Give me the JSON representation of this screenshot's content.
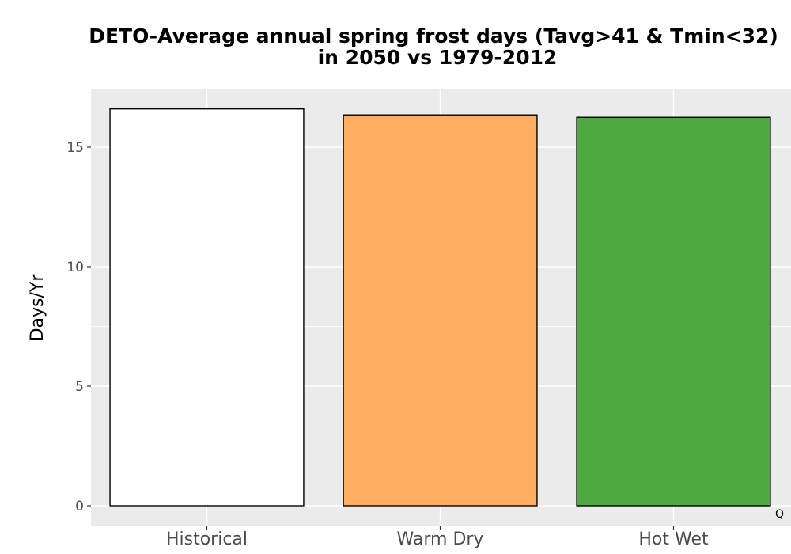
{
  "chart_data": {
    "type": "bar",
    "title_lines": [
      "DETO-Average annual spring frost days (Tavg>41 & Tmin<32)",
      "in 2050 vs 1979-2012"
    ],
    "xlabel": "",
    "ylabel": "Days/Yr",
    "categories": [
      "Historical",
      "Warm Dry",
      "Hot Wet"
    ],
    "values": [
      16.6,
      16.35,
      16.25
    ],
    "bar_colors": [
      "#ffffff",
      "#fdae61",
      "#4daa3f"
    ],
    "bar_outline_color": "#000000",
    "ylim": [
      0,
      17
    ],
    "yticks": [
      0,
      5,
      10,
      15
    ],
    "ytick_labels": [
      "0",
      "5",
      "10",
      "15"
    ],
    "grid": true,
    "panel_background": "#ebebeb",
    "grid_color": "#ffffff",
    "corner_mark": "Q"
  }
}
